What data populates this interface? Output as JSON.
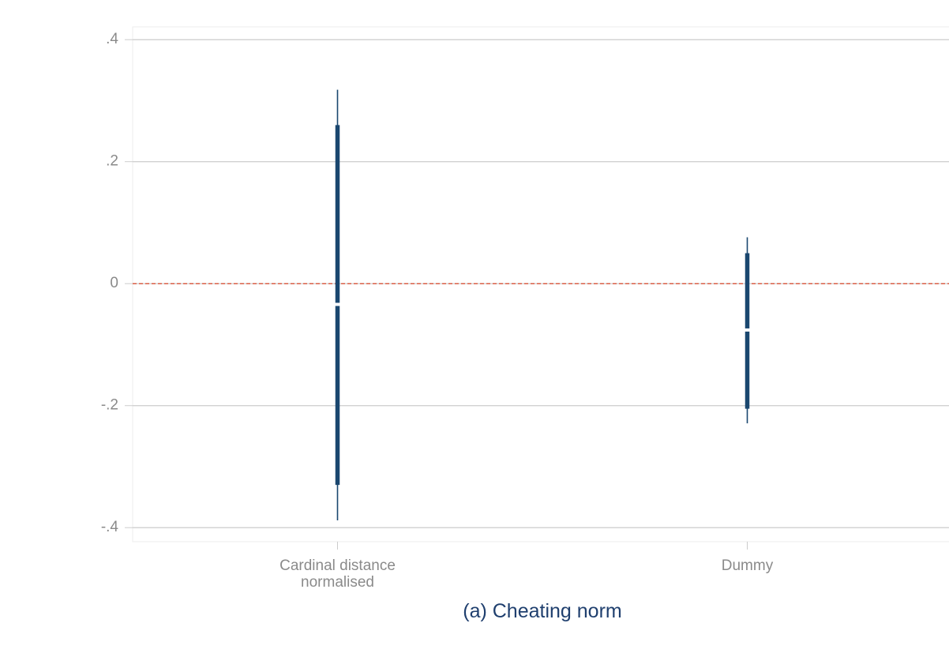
{
  "chart_data": {
    "type": "errorbar",
    "categories": [
      "Cardinal distance\nnormalised",
      "Dummy"
    ],
    "values": [
      -0.034,
      -0.076
    ],
    "ci_outer": [
      [
        -0.388,
        0.318
      ],
      [
        -0.229,
        0.076
      ]
    ],
    "ci_inner": [
      [
        -0.33,
        0.26
      ],
      [
        -0.205,
        0.05
      ]
    ],
    "color": "#1a476f",
    "refline": 0,
    "refline_color": "#d9472b",
    "ylim": [
      -0.423,
      0.421
    ],
    "yticks": [
      {
        "value": -0.4,
        "label": "-.4"
      },
      {
        "value": -0.2,
        "label": "-.2"
      },
      0,
      {
        "value": 0.2,
        "label": ".2"
      },
      {
        "value": 0.4,
        "label": ".4"
      }
    ],
    "grid": true,
    "caption": "(a) Cheating norm"
  }
}
